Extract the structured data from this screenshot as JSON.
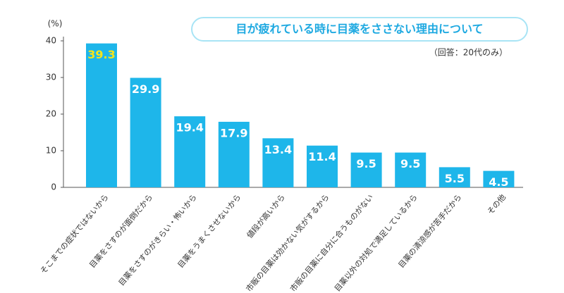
{
  "chart_data": {
    "type": "bar",
    "title": "目が疲れている時に目薬をささない理由について",
    "subtitle": "（回答：20代のみ）",
    "y_axis_label": "(%)",
    "categories": [
      "そこまでの症状ではないから",
      "目薬をさすのが面倒だから",
      "目薬をさすのがきらい・怖いから",
      "目薬をうまくさせないから",
      "値段が高いから",
      "市販の目薬は効かない気がするから",
      "市販の目薬に自分に合うものがない",
      "目薬以外の対処で満足しているから",
      "目薬の清涼感が苦手だから",
      "その他"
    ],
    "values": [
      39.3,
      29.9,
      19.4,
      17.9,
      13.4,
      11.4,
      9.5,
      9.5,
      5.5,
      4.5
    ],
    "color": "#1eb6ea",
    "value_label_colors": [
      "#f5e51b",
      "#ffffff",
      "#ffffff",
      "#ffffff",
      "#ffffff",
      "#ffffff",
      "#ffffff",
      "#ffffff",
      "#ffffff",
      "#ffffff"
    ],
    "ylim": [
      0,
      40
    ],
    "yticks": [
      0,
      10,
      20,
      30,
      40
    ],
    "grid": false
  }
}
